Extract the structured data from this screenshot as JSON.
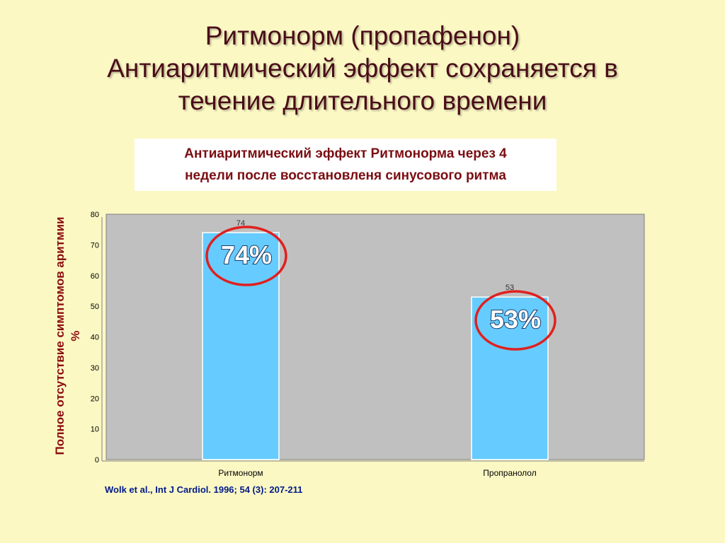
{
  "slide": {
    "title_lines": [
      "Ритмонорм (пропафенон)",
      "Антиаритмический эффект сохраняется  в",
      "течение длительного времени"
    ],
    "subtitle_lines": [
      "Антиаритмический эффект Ритмонорма через 4",
      "недели после восстановленя синусового ритма"
    ],
    "citation": "Wolk et al., Int J Cardiol. 1996; 54 (3): 207-211"
  },
  "chart_data": {
    "type": "bar",
    "categories": [
      "Ритмонорм",
      "Пропранолол"
    ],
    "values": [
      74,
      53
    ],
    "data_labels": [
      "74",
      "53"
    ],
    "highlight_labels": [
      "74%",
      "53%"
    ],
    "ylabel_lines": [
      "Полное отсутствие симптомов аритмии",
      "%"
    ],
    "ylim": [
      0,
      80
    ],
    "yticks": [
      "0",
      "10",
      "20",
      "30",
      "40",
      "50",
      "60",
      "70",
      "80"
    ],
    "grid": false,
    "colors": {
      "bar": "#66ccff",
      "plot_background": "#c0c0c0",
      "highlight_circle": "#e02020",
      "axis_text": "#000000"
    }
  }
}
